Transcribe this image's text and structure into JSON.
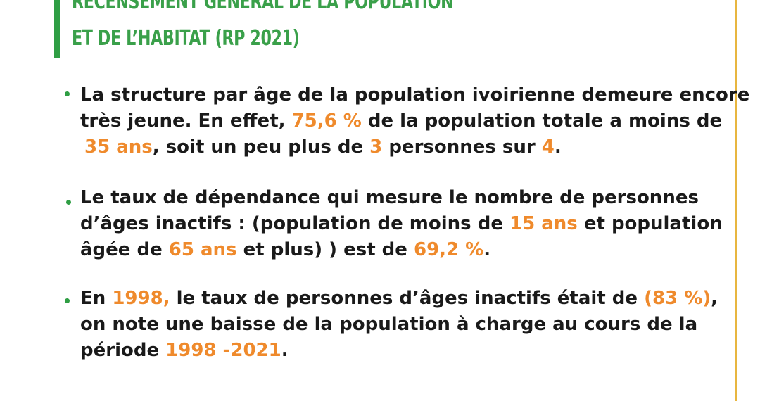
{
  "header": {
    "title_line_1": "RECENSEMENT GÉNÉRAL DE LA POPULATION",
    "title_line_2": "ET DE L’HABITAT (RP 2021)"
  },
  "colors": {
    "accent_green": "#2f9e44",
    "highlight_orange": "#ef8a2c",
    "rule_gold": "#e8b640",
    "text": "#1a1a1a"
  },
  "paragraphs": [
    {
      "lines": [
        [
          {
            "t": "La structure par âge de la population ivoirienne demeure encore"
          }
        ],
        [
          {
            "t": "très jeune. En effet, "
          },
          {
            "t": "75,6 %",
            "hl": true
          },
          {
            "t": " de la population totale a moins de"
          }
        ],
        [
          {
            "t": " "
          },
          {
            "t": "35 ans",
            "hl": true
          },
          {
            "t": ", soit un peu plus de "
          },
          {
            "t": "3",
            "hl": true
          },
          {
            "t": " personnes sur "
          },
          {
            "t": "4",
            "hl": true
          },
          {
            "t": "."
          }
        ]
      ]
    },
    {
      "lines": [
        [
          {
            "t": "Le taux de dépendance qui mesure le nombre de personnes"
          }
        ],
        [
          {
            "t": "d’âges inactifs : (population de moins de "
          },
          {
            "t": "15 ans",
            "hl": true
          },
          {
            "t": " et population"
          }
        ],
        [
          {
            "t": "âgée de "
          },
          {
            "t": "65 ans",
            "hl": true
          },
          {
            "t": " et plus) ) est de "
          },
          {
            "t": "69,2 %",
            "hl": true
          },
          {
            "t": "."
          }
        ]
      ]
    },
    {
      "lines": [
        [
          {
            "t": " En "
          },
          {
            "t": "1998,",
            "hl": true
          },
          {
            "t": " le taux de personnes d’âges inactifs était de "
          },
          {
            "t": "(83 %)",
            "hl": true
          },
          {
            "t": ","
          }
        ],
        [
          {
            "t": "on note une baisse de la population à charge au cours de la"
          }
        ],
        [
          {
            "t": "période "
          },
          {
            "t": "1998 -2021",
            "hl": true
          },
          {
            "t": "."
          }
        ]
      ]
    }
  ]
}
